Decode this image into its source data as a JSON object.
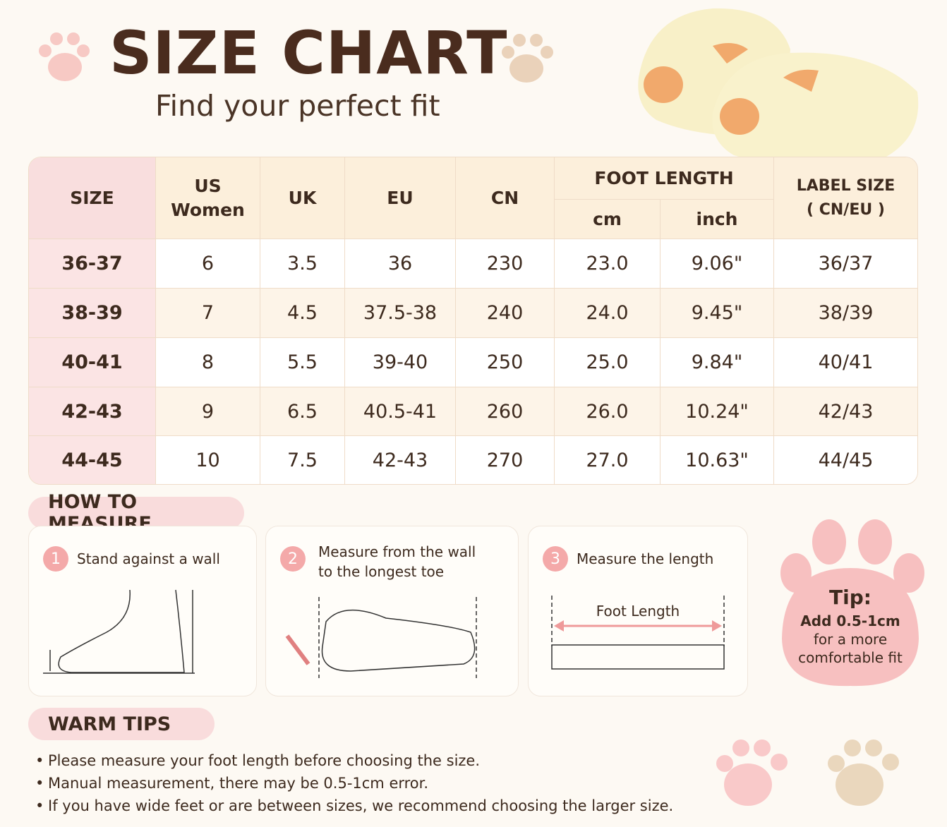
{
  "header": {
    "title": "SIZE CHART",
    "subtitle": "Find your perfect fit"
  },
  "table": {
    "headers": {
      "size": "SIZE",
      "us": [
        "US",
        "Women"
      ],
      "uk": "UK",
      "eu": "EU",
      "cn": "CN",
      "foot_length": "FOOT LENGTH",
      "cm": "cm",
      "inch": "inch",
      "label_size": [
        "LABEL SIZE",
        "( CN/EU )"
      ]
    },
    "rows": [
      [
        "36-37",
        "6",
        "3.5",
        "36",
        "230",
        "23.0",
        "9.06\"",
        "36/37"
      ],
      [
        "38-39",
        "7",
        "4.5",
        "37.5-38",
        "240",
        "24.0",
        "9.45\"",
        "38/39"
      ],
      [
        "40-41",
        "8",
        "5.5",
        "39-40",
        "250",
        "25.0",
        "9.84\"",
        "40/41"
      ],
      [
        "42-43",
        "9",
        "6.5",
        "40.5-41",
        "260",
        "26.0",
        "10.24\"",
        "42/43"
      ],
      [
        "44-45",
        "10",
        "7.5",
        "42-43",
        "270",
        "27.0",
        "10.63\"",
        "44/45"
      ]
    ]
  },
  "measure": {
    "title": "HOW TO MEASURE",
    "steps": [
      {
        "number": "1",
        "text": [
          "Stand against a wall"
        ]
      },
      {
        "number": "2",
        "text": [
          "Measure from the wall",
          "to the longest toe"
        ]
      },
      {
        "number": "3",
        "text": [
          "Measure the length"
        ],
        "label": "Foot Length"
      }
    ]
  },
  "tip": {
    "title": "Tip:",
    "lines": [
      "Add 0.5-1cm",
      "for a more",
      "comfortable fit"
    ]
  },
  "warm_tips": {
    "title": "WARM TIPS",
    "items": [
      "Please measure your foot length before choosing the size.",
      "Manual measurement, there may be 0.5-1cm error.",
      "If you have wide feet or are between sizes, we recommend choosing the larger size."
    ]
  }
}
